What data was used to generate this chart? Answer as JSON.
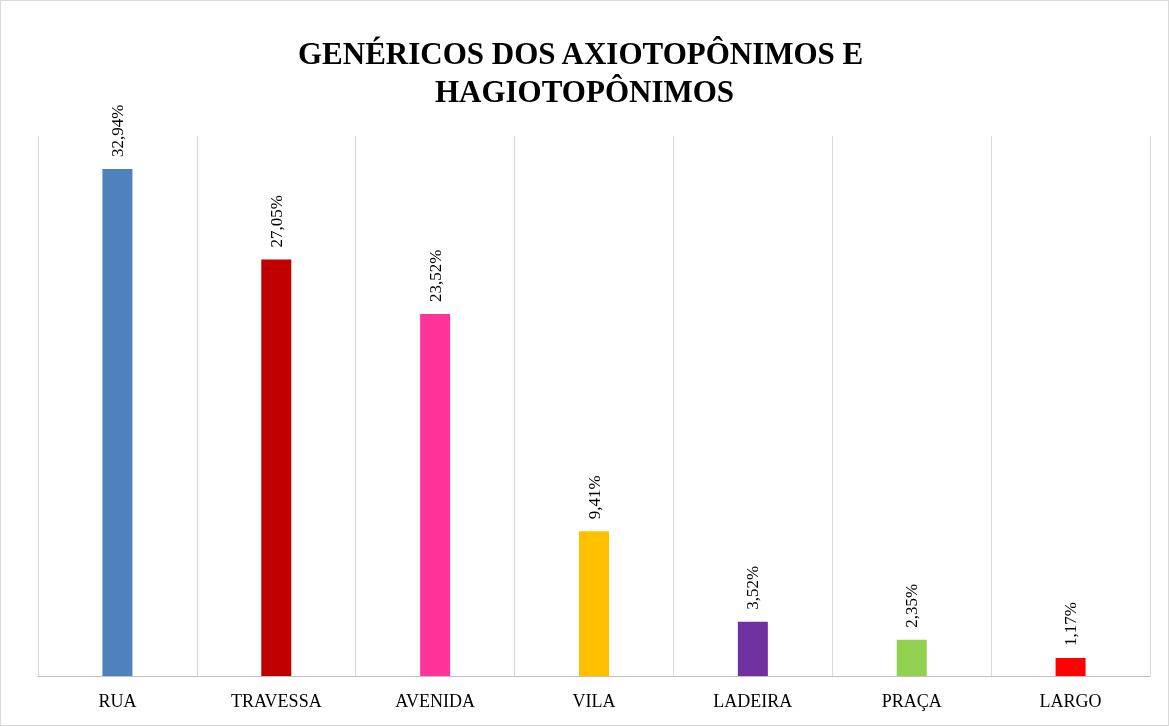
{
  "chart_data": {
    "type": "bar",
    "title": "GENÉRICOS DOS AXIOTOPÔNIMOS E HAGIOTOPÔNIMOS",
    "categories": [
      "RUA",
      "TRAVESSA",
      "AVENIDA",
      "VILA",
      "LADEIRA",
      "PRAÇA",
      "LARGO"
    ],
    "values": [
      32.94,
      27.05,
      23.52,
      9.41,
      3.52,
      2.35,
      1.17
    ],
    "value_labels": [
      "32,94%",
      "27,05%",
      "23,52%",
      "9,41%",
      "3,52%",
      "2,35%",
      "1,17%"
    ],
    "colors": [
      "#4f81bd",
      "#c00000",
      "#ff3399",
      "#ffc000",
      "#7030a0",
      "#92d050",
      "#ff0000"
    ],
    "grid": "x"
  }
}
